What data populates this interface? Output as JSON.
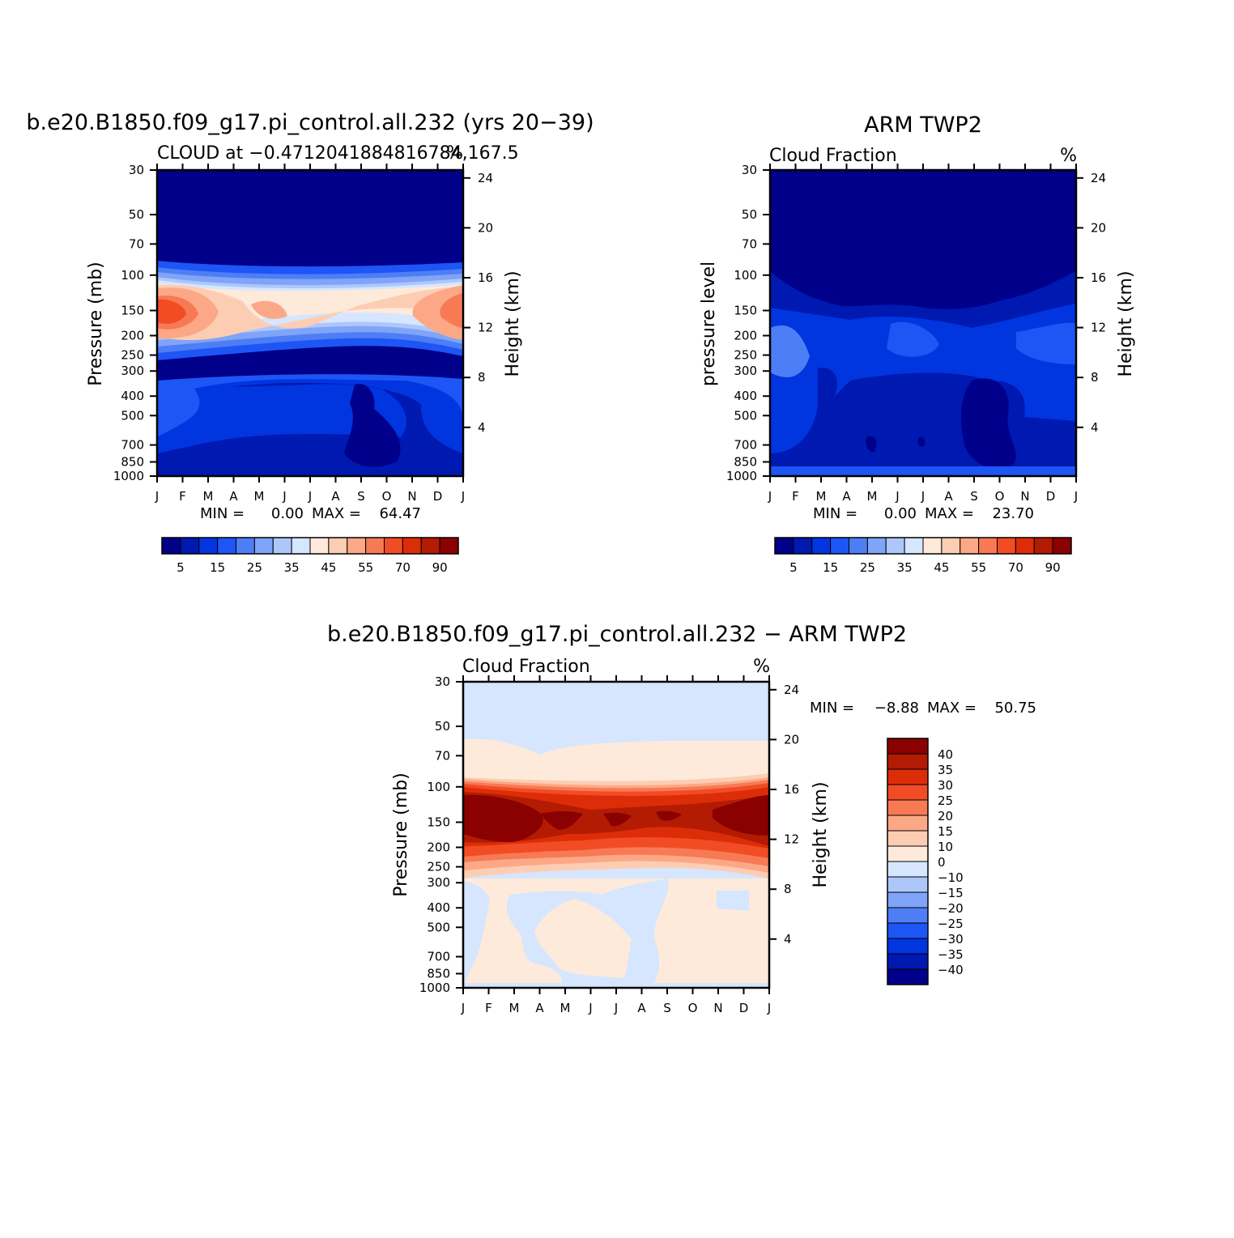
{
  "chart_data": [
    {
      "type": "heatmap",
      "title": "b.e20.B1850.f09_g17.pi_control.all.232 (yrs 20−39)",
      "subtitle": "CLOUD at −0.4712041884816784,167.5",
      "units": "%",
      "xlabel": "",
      "ylabel": "Pressure (mb)",
      "ylabel_right": "Height (km)",
      "x_ticks": [
        "J",
        "F",
        "M",
        "A",
        "M",
        "J",
        "J",
        "A",
        "S",
        "O",
        "N",
        "D",
        "J"
      ],
      "y_ticks": [
        30,
        50,
        70,
        100,
        150,
        200,
        250,
        300,
        400,
        500,
        700,
        850,
        1000
      ],
      "y_ticks_right": [
        24,
        20,
        16,
        12,
        8,
        4
      ],
      "ylim": [
        30,
        1000
      ],
      "y_scale": "log",
      "min_label": "MIN =",
      "min_value": "0.00",
      "max_label": "MAX =",
      "max_value": "64.47",
      "colorbar_labels": [
        "5",
        "15",
        "25",
        "35",
        "45",
        "55",
        "70",
        "90"
      ],
      "colorbar_colors": [
        "#00008a",
        "#0019b0",
        "#0035e0",
        "#1e55f5",
        "#4d7ef5",
        "#7fa4f8",
        "#aec7fb",
        "#d5e6fe",
        "#feeadb",
        "#fdcdb3",
        "#fca886",
        "#f77a55",
        "#f24c24",
        "#dd2d08",
        "#b31b03",
        "#8b0000"
      ],
      "description_levels": {
        "100-150mb": "peak about 60-64 near Jan/Dec, about 50 in Feb and Apr",
        "30-70mb": "below 5",
        "400-700mb": "about 10-20",
        "near-surface": "about 5"
      }
    },
    {
      "type": "heatmap",
      "title": "ARM TWP2",
      "subtitle": "Cloud Fraction",
      "units": "%",
      "xlabel": "",
      "ylabel": "pressure level",
      "ylabel_right": "Height (km)",
      "x_ticks": [
        "J",
        "F",
        "M",
        "A",
        "M",
        "J",
        "J",
        "A",
        "S",
        "O",
        "N",
        "D",
        "J"
      ],
      "y_ticks": [
        30,
        50,
        70,
        100,
        150,
        200,
        250,
        300,
        400,
        500,
        700,
        850,
        1000
      ],
      "y_ticks_right": [
        24,
        20,
        16,
        12,
        8,
        4
      ],
      "ylim": [
        30,
        1000
      ],
      "y_scale": "log",
      "min_label": "MIN =",
      "min_value": "0.00",
      "max_label": "MAX =",
      "max_value": "23.70",
      "colorbar_labels": [
        "5",
        "15",
        "25",
        "35",
        "45",
        "55",
        "70",
        "90"
      ],
      "colorbar_colors": [
        "#00008a",
        "#0019b0",
        "#0035e0",
        "#1e55f5",
        "#4d7ef5",
        "#7fa4f8",
        "#aec7fb",
        "#d5e6fe",
        "#feeadb",
        "#fdcdb3",
        "#fca886",
        "#f77a55",
        "#f24c24",
        "#dd2d08",
        "#b31b03",
        "#8b0000"
      ]
    },
    {
      "type": "heatmap",
      "title": "b.e20.B1850.f09_g17.pi_control.all.232 − ARM TWP2",
      "subtitle": "Cloud Fraction",
      "units": "%",
      "xlabel": "",
      "ylabel": "Pressure (mb)",
      "ylabel_right": "Height (km)",
      "x_ticks": [
        "J",
        "F",
        "M",
        "A",
        "M",
        "J",
        "J",
        "A",
        "S",
        "O",
        "N",
        "D",
        "J"
      ],
      "y_ticks": [
        30,
        50,
        70,
        100,
        150,
        200,
        250,
        300,
        400,
        500,
        700,
        850,
        1000
      ],
      "y_ticks_right": [
        24,
        20,
        16,
        12,
        8,
        4
      ],
      "ylim": [
        30,
        1000
      ],
      "y_scale": "log",
      "min_label": "MIN =",
      "min_value": "−8.88",
      "max_label": "MAX =",
      "max_value": "50.75",
      "colorbar_labels": [
        "40",
        "35",
        "30",
        "25",
        "20",
        "15",
        "10",
        "0",
        "−10",
        "−15",
        "−20",
        "−25",
        "−30",
        "−35",
        "−40"
      ],
      "colorbar_colors": [
        "#8b0000",
        "#b31b03",
        "#dd2d08",
        "#f24c24",
        "#f77a55",
        "#fca886",
        "#fdcdb3",
        "#feeadb",
        "#d5e6fe",
        "#aec7fb",
        "#7fa4f8",
        "#4d7ef5",
        "#1e55f5",
        "#0035e0",
        "#0019b0",
        "#00008a"
      ]
    }
  ]
}
